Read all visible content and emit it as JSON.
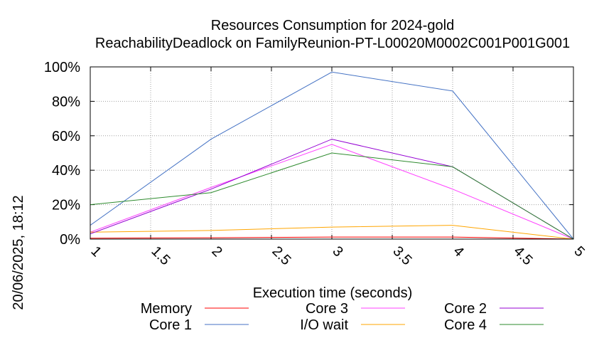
{
  "chart_data": {
    "type": "line",
    "title": "Resources Consumption for 2024-gold",
    "subtitle": "ReachabilityDeadlock on FamilyReunion-PT-L00020M0002C001P001G001",
    "xlabel": "Execution time (seconds)",
    "side_label": "20/06/2025, 18:12",
    "xlim": [
      1,
      5
    ],
    "ylim": [
      0,
      100
    ],
    "x_ticks": [
      "1",
      "1.5",
      "2",
      "2.5",
      "3",
      "3.5",
      "4",
      "4.5",
      "5"
    ],
    "y_ticks": [
      "0%",
      "20%",
      "40%",
      "60%",
      "80%",
      "100%"
    ],
    "grid": true,
    "legend_position": "bottom",
    "series": [
      {
        "name": "Memory",
        "color": "#ff0000",
        "x": [
          1,
          2,
          3,
          4,
          5
        ],
        "y": [
          0.5,
          0.8,
          1.2,
          1.2,
          0
        ]
      },
      {
        "name": "Core 1",
        "color": "#4472c4",
        "x": [
          1,
          2,
          3,
          4,
          5
        ],
        "y": [
          8,
          58,
          97,
          86,
          0
        ]
      },
      {
        "name": "Core 3",
        "color": "#ff40ff",
        "x": [
          1,
          2,
          3,
          4,
          5
        ],
        "y": [
          4,
          30,
          55,
          29,
          0
        ]
      },
      {
        "name": "I/O wait",
        "color": "#ffa500",
        "x": [
          1,
          2,
          3,
          4,
          5
        ],
        "y": [
          4,
          5,
          7,
          8,
          0
        ]
      },
      {
        "name": "Core 2",
        "color": "#9400d3",
        "x": [
          1,
          2,
          3,
          4,
          5
        ],
        "y": [
          3,
          29,
          58,
          42,
          0
        ]
      },
      {
        "name": "Core 4",
        "color": "#2e8b2e",
        "x": [
          1,
          2,
          3,
          4,
          5
        ],
        "y": [
          20,
          27,
          50,
          42,
          0
        ]
      }
    ]
  }
}
